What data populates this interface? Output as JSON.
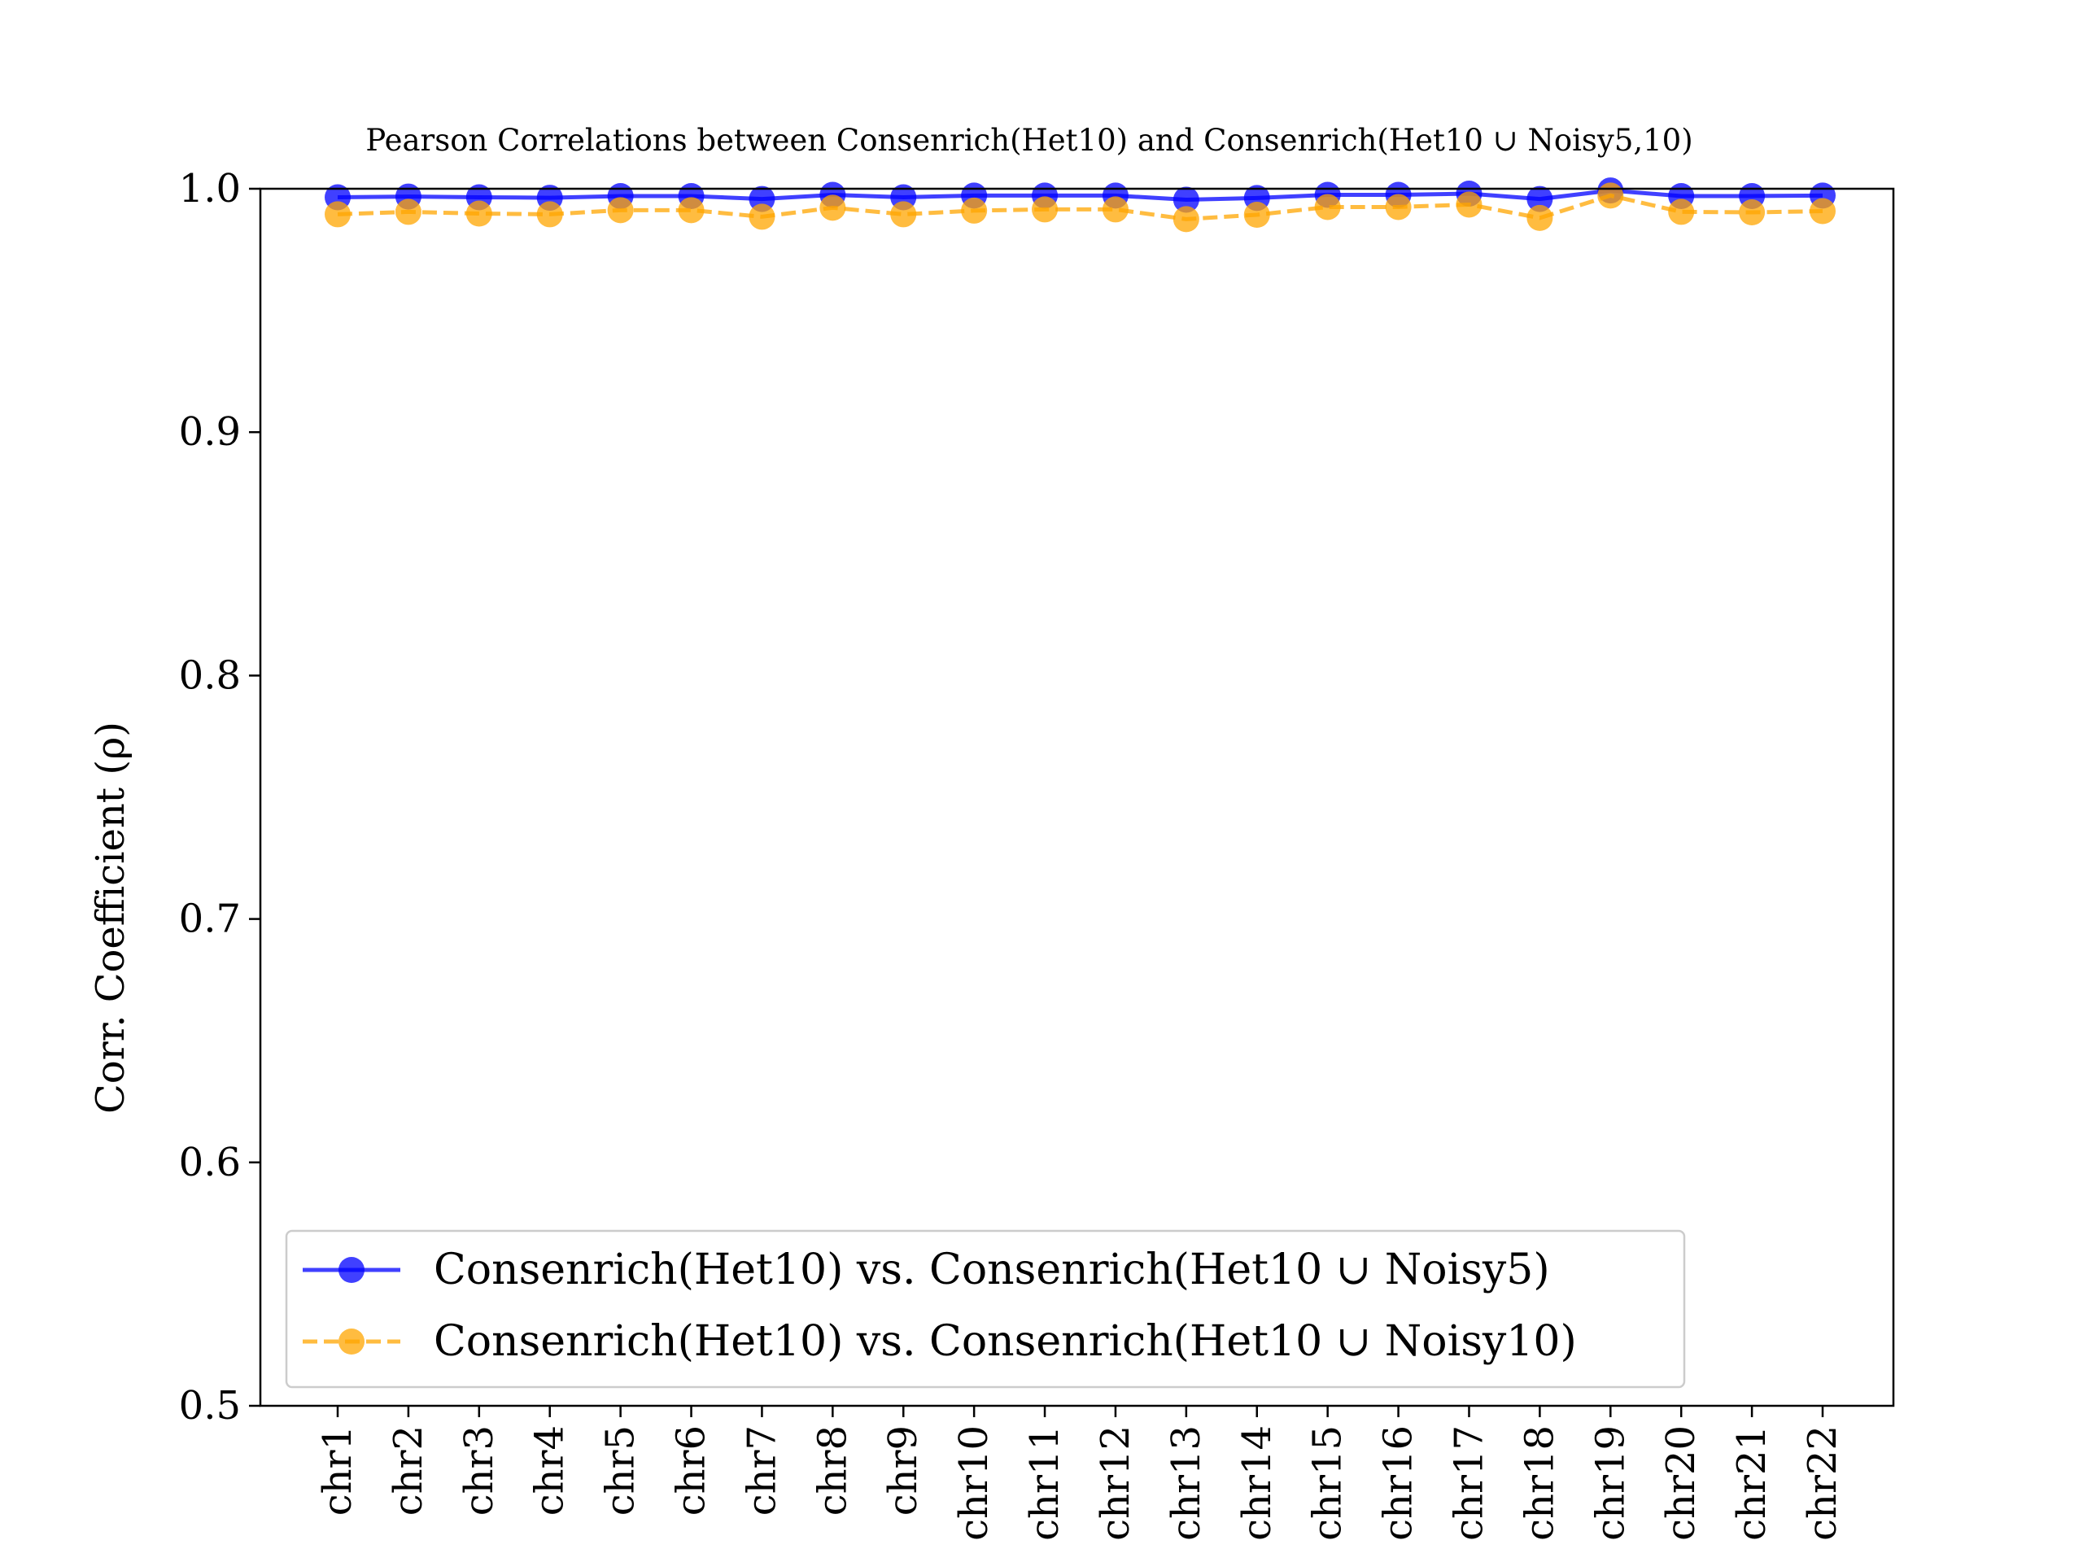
{
  "chart_data": {
    "type": "line",
    "title": "Pearson Correlations between Consenrich(Het10) and Consenrich(Het10 ∪ Noisy5,10)",
    "xlabel": "",
    "ylabel": "Corr. Coefficient (ρ)",
    "ylim": [
      0.5,
      1.0
    ],
    "yticks": [
      "0.5",
      "0.6",
      "0.7",
      "0.8",
      "0.9",
      "1.0"
    ],
    "grid": false,
    "legend_position": "lower-left",
    "categories": [
      "chr1",
      "chr2",
      "chr3",
      "chr4",
      "chr5",
      "chr6",
      "chr7",
      "chr8",
      "chr9",
      "chr10",
      "chr11",
      "chr12",
      "chr13",
      "chr14",
      "chr15",
      "chr16",
      "chr17",
      "chr18",
      "chr19",
      "chr20",
      "chr21",
      "chr22"
    ],
    "series": [
      {
        "name": "Consenrich(Het10) vs. Consenrich(Het10 ∪ Noisy5)",
        "color": "#0000ff",
        "line_style": "solid",
        "marker": "circle",
        "values": [
          0.9965,
          0.9968,
          0.9965,
          0.9963,
          0.997,
          0.997,
          0.9958,
          0.9975,
          0.9965,
          0.9972,
          0.9972,
          0.9972,
          0.9955,
          0.9962,
          0.9975,
          0.9975,
          0.998,
          0.9958,
          0.9993,
          0.997,
          0.997,
          0.9972
        ]
      },
      {
        "name": "Consenrich(Het10) vs. Consenrich(Het10 ∪ Noisy10)",
        "color": "#ffa500",
        "line_style": "dashed",
        "marker": "circle",
        "values": [
          0.9895,
          0.9905,
          0.9898,
          0.9895,
          0.9912,
          0.9912,
          0.9885,
          0.9922,
          0.9895,
          0.991,
          0.9915,
          0.9915,
          0.9875,
          0.9893,
          0.9925,
          0.9925,
          0.9935,
          0.988,
          0.9972,
          0.9905,
          0.9903,
          0.9908
        ]
      }
    ]
  }
}
